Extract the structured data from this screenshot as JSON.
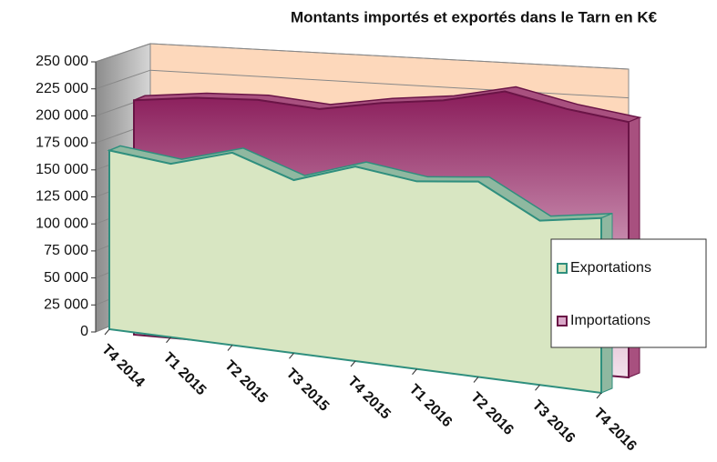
{
  "chart_data": {
    "type": "area3d",
    "title": "Montants importés et exportés dans le Tarn en K€",
    "categories": [
      "T4 2014",
      "T1 2015",
      "T2 2015",
      "T3 2015",
      "T4 2015",
      "T1 2016",
      "T2 2016",
      "T3 2016",
      "T4 2016"
    ],
    "series": [
      {
        "name": "Exportations",
        "color": "#d8e6c2",
        "values": [
          168000,
          153000,
          160000,
          136000,
          145000,
          133000,
          132000,
          106000,
          108000
        ]
      },
      {
        "name": "Importations",
        "color": "#8e1f5e",
        "values": [
          213000,
          215000,
          213000,
          205000,
          210000,
          212000,
          219000,
          205000,
          195000
        ]
      }
    ],
    "ylim": [
      0,
      250000
    ],
    "yticks": [
      0,
      {
        "value": 25000,
        "label": "25 000"
      },
      {
        "value": 50000,
        "label": "50 000"
      },
      {
        "value": 75000,
        "label": "75 000"
      },
      {
        "value": 100000,
        "label": "100 000"
      },
      {
        "value": 125000,
        "label": "125 000"
      },
      {
        "value": 150000,
        "label": "150 000"
      },
      {
        "value": 175000,
        "label": "175 000"
      },
      {
        "value": 200000,
        "label": "200 000"
      },
      {
        "value": 225000,
        "label": "225 000"
      },
      {
        "value": 250000,
        "label": "250 000"
      }
    ],
    "grid": true,
    "legend": "right"
  }
}
